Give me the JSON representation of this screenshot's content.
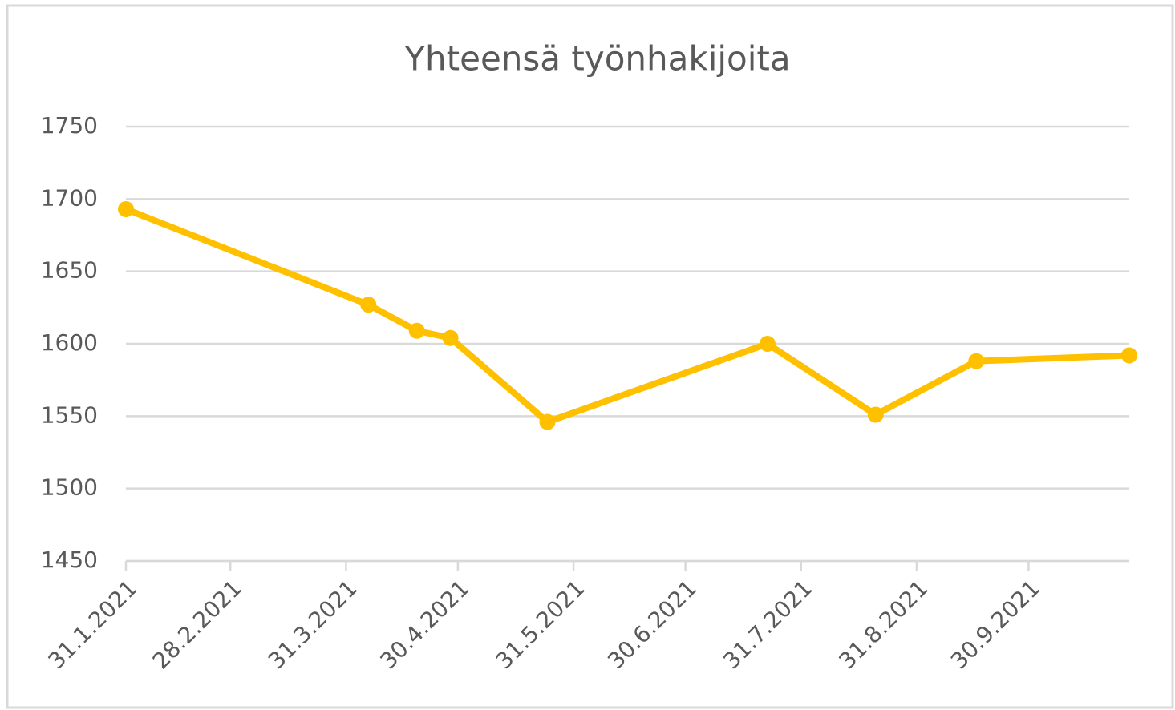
{
  "chart_data": {
    "type": "line",
    "title": "Yhteensä työnhakijoita",
    "x": [
      "2021-01-31",
      "2021-04-06",
      "2021-04-19",
      "2021-04-28",
      "2021-05-24",
      "2021-07-22",
      "2021-08-20",
      "2021-09-16",
      "2021-10-27"
    ],
    "series": [
      {
        "name": "Yhteensä työnhakijoita",
        "color": "#ffc000",
        "values": [
          1693,
          1627,
          1609,
          1604,
          1546,
          1600,
          1551,
          1588,
          1592
        ]
      }
    ],
    "xlim": [
      "2021-01-31",
      "2021-10-27"
    ],
    "xticks": [
      {
        "value": "2021-01-31",
        "label": "31.1.2021"
      },
      {
        "value": "2021-02-28",
        "label": "28.2.2021"
      },
      {
        "value": "2021-03-31",
        "label": "31.3.2021"
      },
      {
        "value": "2021-04-30",
        "label": "30.4.2021"
      },
      {
        "value": "2021-05-31",
        "label": "31.5.2021"
      },
      {
        "value": "2021-06-30",
        "label": "30.6.2021"
      },
      {
        "value": "2021-07-31",
        "label": "31.7.2021"
      },
      {
        "value": "2021-08-31",
        "label": "31.8.2021"
      },
      {
        "value": "2021-09-30",
        "label": "30.9.2021"
      }
    ],
    "ylim": [
      1450,
      1750
    ],
    "yticks": [
      1450,
      1500,
      1550,
      1600,
      1650,
      1700,
      1750
    ],
    "grid": true
  }
}
